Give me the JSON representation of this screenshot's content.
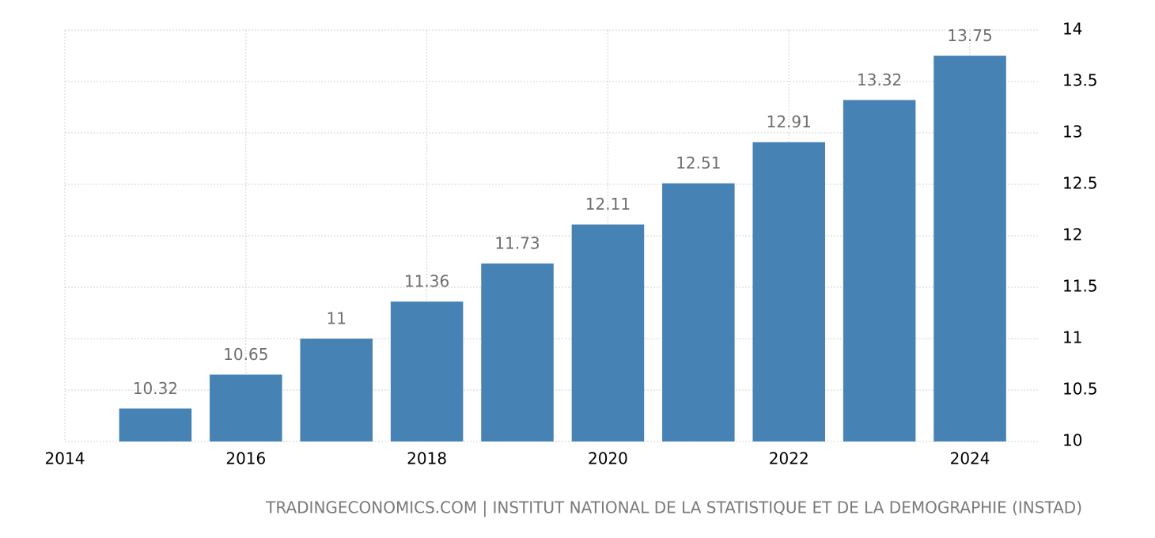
{
  "chart_data": {
    "type": "bar",
    "x": [
      2015,
      2016,
      2017,
      2018,
      2019,
      2020,
      2021,
      2022,
      2023,
      2024
    ],
    "values": [
      10.32,
      10.65,
      11,
      11.36,
      11.73,
      12.11,
      12.51,
      12.91,
      13.32,
      13.75
    ],
    "color": "#4682b4",
    "xlim": [
      2014,
      2024.76
    ],
    "xticks": [
      2014,
      2016,
      2018,
      2020,
      2022,
      2024
    ],
    "ylim": [
      10,
      14
    ],
    "yticks": [
      10,
      10.5,
      11,
      11.5,
      12,
      12.5,
      13,
      13.5,
      14
    ],
    "grid": true,
    "source": "TRADINGECONOMICS.COM | INSTITUT NATIONAL DE LA STATISTIQUE ET DE LA DEMOGRAPHIE (INSTAD)"
  }
}
